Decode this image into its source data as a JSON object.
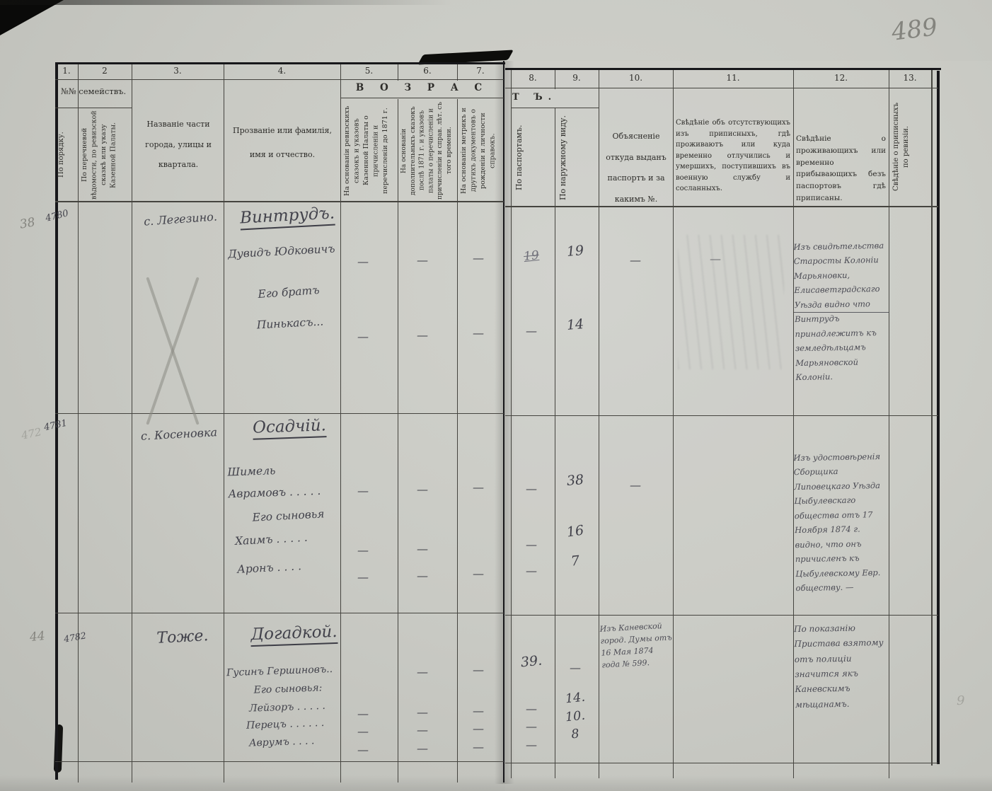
{
  "page": {
    "page_number": "489",
    "right_margin_pencil": "9"
  },
  "header": {
    "family_group": "№№ семействъ.",
    "age_banner_left": "В О З Р А С",
    "age_banner_right": "Т Ъ.",
    "column_numbers": [
      "1.",
      "2",
      "3.",
      "4.",
      "5.",
      "6.",
      "7.",
      "8.",
      "9.",
      "10.",
      "11.",
      "12.",
      "13."
    ],
    "col1": "По порядку.",
    "col2": "По перечневой вѣдомости, по ревизской сказкѣ или указу Казенной Палаты.",
    "col3": "Названіе части города, улицы и квартала.",
    "col4": "Прозваніе или фамилія, имя и отчество.",
    "col5": "На основаніи ревизскихъ сказокъ и указовъ Казенной Палаты о причисленіи и перечисленіи до 1871 г.",
    "col6": "На основаніи дополнительныхъ сказокъ послѣ 1871 г. и указовъ палаты о перечисленіи и причисленіи и справ. лѣт. съ того времени.",
    "col7": "На основаніи метрикъ и другихъ документовъ о рожденіи и личности справокъ.",
    "col8": "По паспортамъ.",
    "col9": "По наружному виду.",
    "col10": "Объясненіе откуда выданъ паспортъ и за какимъ №.",
    "col11": "Свѣдѣніе объ отсутствующихъ изъ приписныхъ, гдѣ проживаютъ или куда временно отлучились и умершихъ, поступившихъ въ военную службу и сосланныхъ.",
    "col12": "Свѣдѣніе о проживающихъ или временно прибывающихъ безъ паспортовъ гдѣ приписаны.",
    "col13": "Свѣдѣніе о приписныхъ по ревизіи."
  },
  "entries": [
    {
      "number": "4780",
      "margin_pencil": "38",
      "locality": "с. Легезино.",
      "surname": "Винтрудъ.",
      "persons": [
        {
          "name": "Дувидъ Юдковичъ",
          "ages": {
            "c5": "—",
            "c6": "—",
            "c7": "—",
            "c8": "19",
            "c9": "19",
            "c10": "—",
            "c11": "—"
          }
        },
        {
          "relation": "Его братъ",
          "name": "Пинькасъ...",
          "ages": {
            "c5": "—",
            "c6": "—",
            "c7": "—",
            "c8": "—",
            "c9": "14"
          }
        }
      ],
      "note_col12": "Изъ свидѣтельства Старосты Колоніи Марьяновки, Елисаветградскаго Уѣзда видно что Винтрудъ принадлежитъ къ земледѣльцамъ Марьяновской Колоніи."
    },
    {
      "number": "4781",
      "margin_pencil": "472",
      "locality": "с. Косеновка",
      "surname": "Осадчій.",
      "persons": [
        {
          "name": "Шимель Аврамовъ . . . . .",
          "ages": {
            "c5": "—",
            "c6": "—",
            "c7": "—",
            "c8": "—",
            "c9": "38",
            "c10": "—"
          }
        },
        {
          "relation": "Его сыновья",
          "name": "Хаимъ . . . . .",
          "ages": {
            "c5": "—",
            "c6": "—",
            "c8": "—",
            "c9": "16"
          }
        },
        {
          "name": "Аронъ . . . .",
          "ages": {
            "c5": "—",
            "c6": "—",
            "c7": "—",
            "c8": "—",
            "c9": "7"
          }
        }
      ],
      "note_col12": "Изъ удостовѣренія Сборщика Липовецкаго Уѣзда Цыбулевскаго общества отъ 17 Ноября 1874 г. видно, что онъ причисленъ къ Цыбулевскому Евр. обществу. —"
    },
    {
      "number": "4782",
      "margin_pencil": "44",
      "locality": "Тоже.",
      "surname": "Догадкой.",
      "persons": [
        {
          "name": "Гусинъ Гершиновъ..",
          "ages": {
            "c6": "—",
            "c7": "—",
            "c8": "39.",
            "c9": "—"
          }
        },
        {
          "relation": "Его сыновья:",
          "name": "Лейзоръ . . . . .",
          "ages": {
            "c5": "—",
            "c6": "—",
            "c7": "—",
            "c8": "—",
            "c9": "14."
          }
        },
        {
          "name": "Перецъ . . . . . .",
          "ages": {
            "c5": "—",
            "c6": "—",
            "c7": "—",
            "c8": "—",
            "c9": "10."
          }
        },
        {
          "name": "Аврумъ . . . .",
          "ages": {
            "c5": "—",
            "c6": "—",
            "c7": "—",
            "c8": "—",
            "c9": "8"
          }
        }
      ],
      "note_col10": "Изъ Каневской город. Думы отъ 16 Мая 1874 года № 599.",
      "note_col12": "По показанію Пристава взятому отъ полиціи значится якъ Каневскимъ мѣщанамъ."
    }
  ],
  "colors": {
    "paper": "#c9cac4",
    "ink_lines": "#45443f",
    "handwriting": "#42424b",
    "pencil": "#84847e"
  }
}
